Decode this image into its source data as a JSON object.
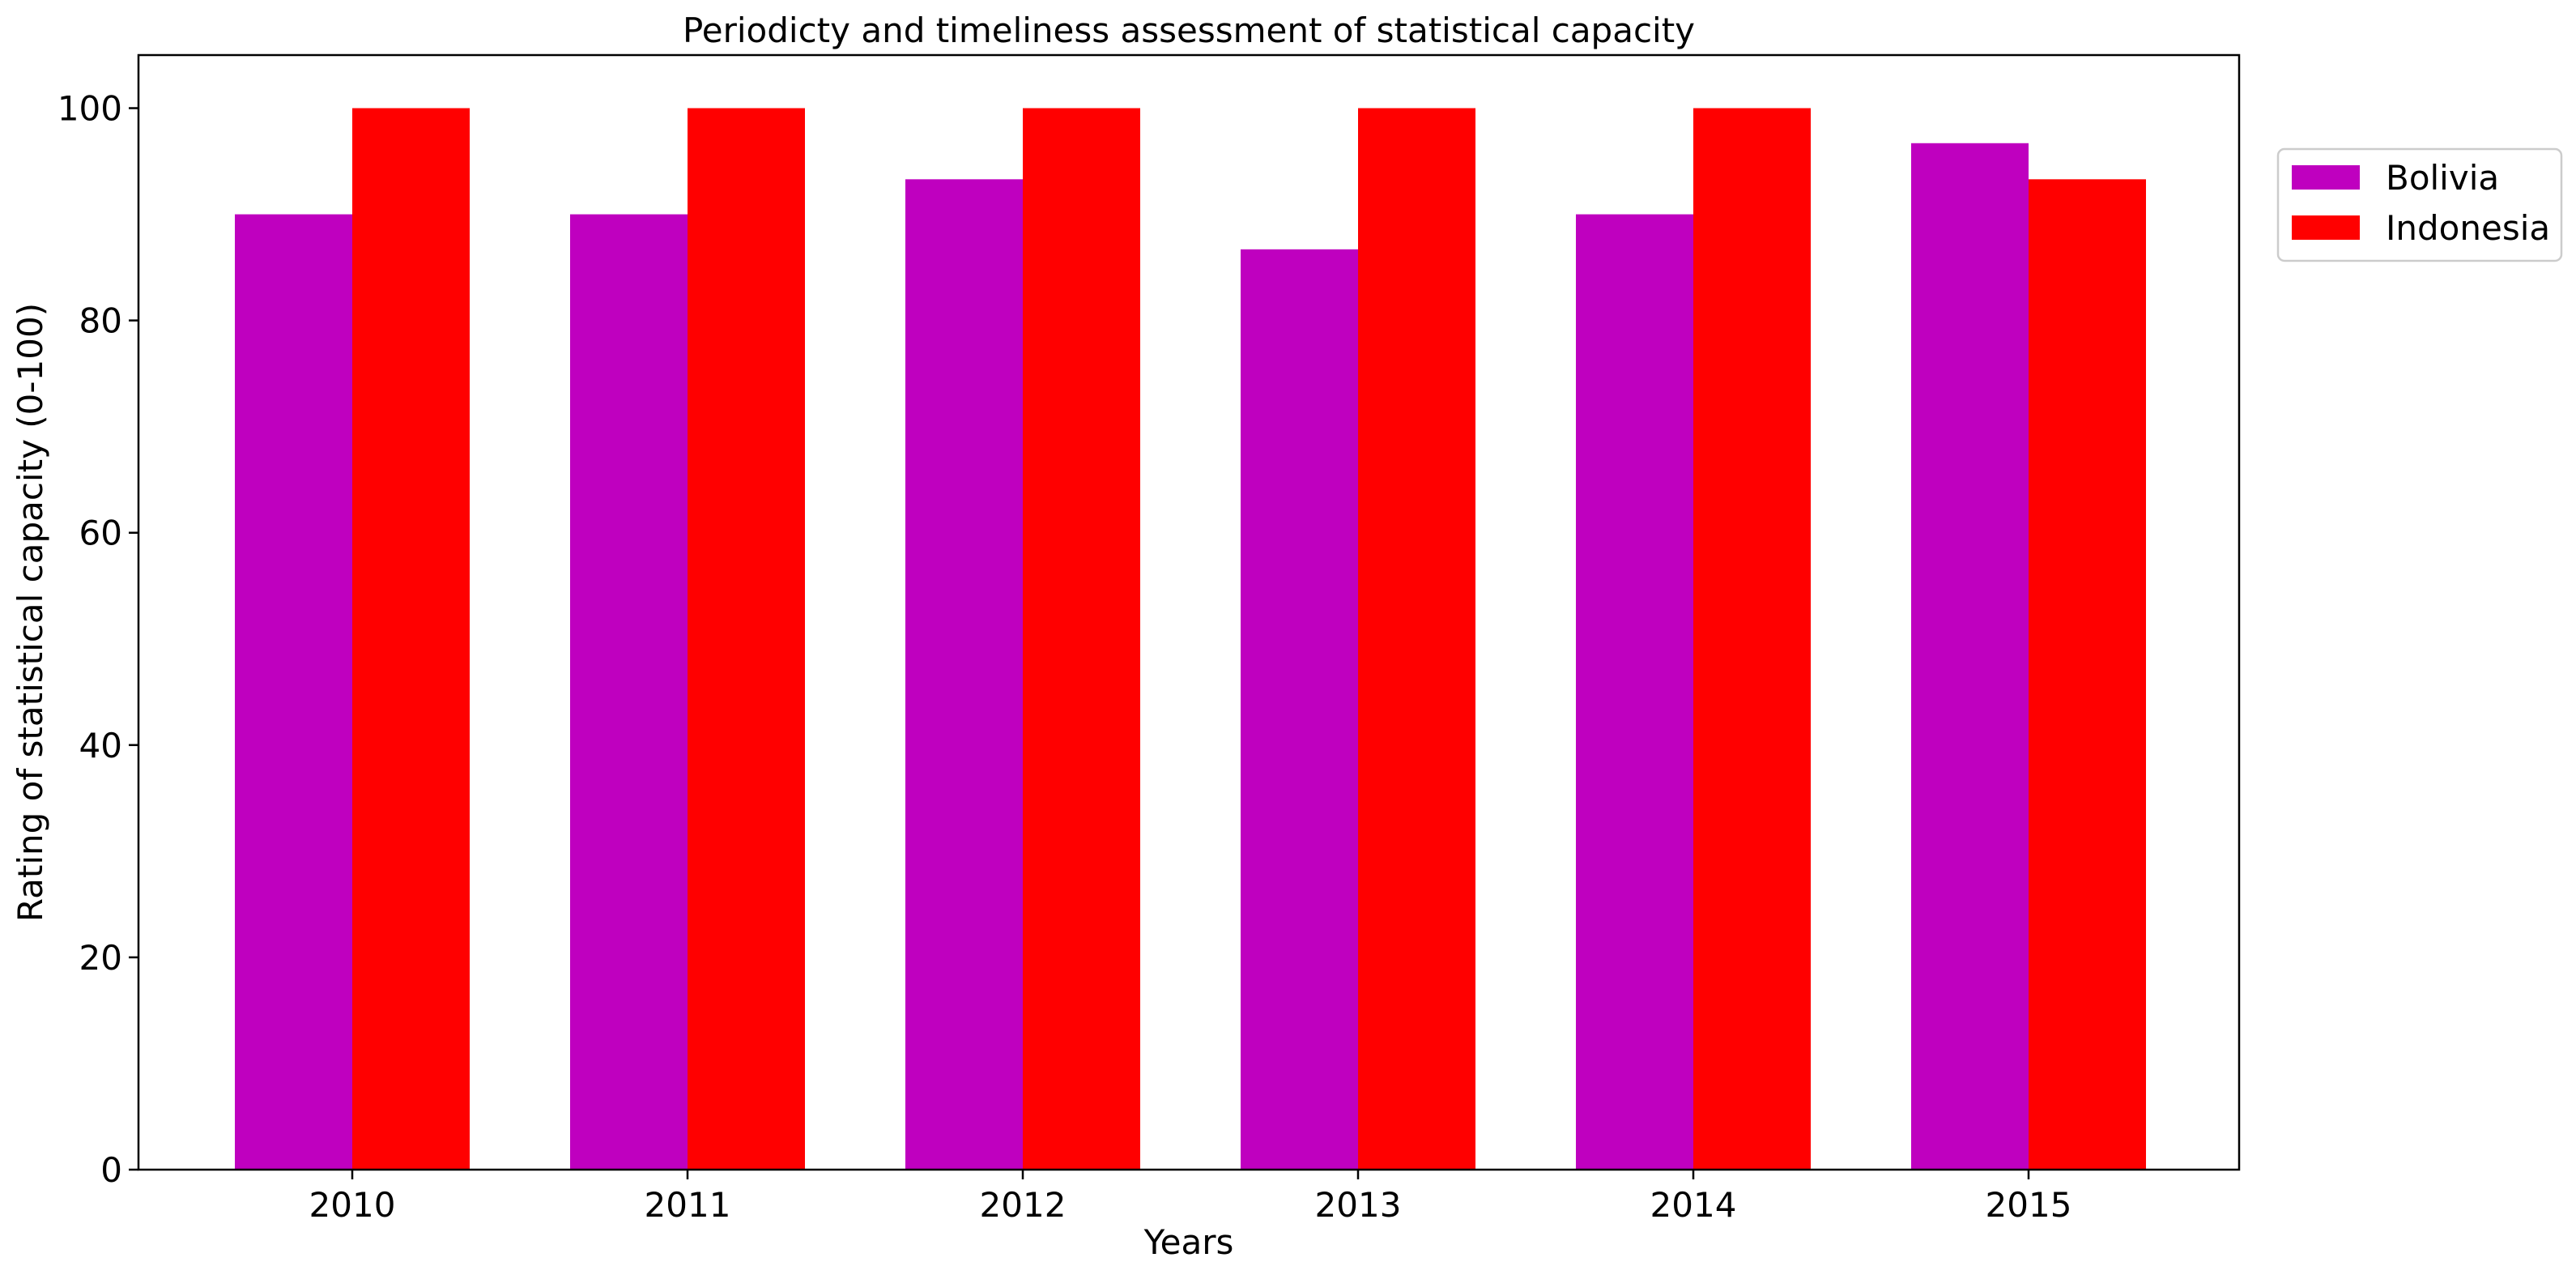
{
  "chart_data": {
    "type": "bar",
    "title": "Periodicty and timeliness assessment of statistical capacity",
    "xlabel": "Years",
    "ylabel": "Rating of statistical capacity (0-100)",
    "categories": [
      "2010",
      "2011",
      "2012",
      "2013",
      "2014",
      "2015"
    ],
    "series": [
      {
        "name": "Bolivia",
        "color": "#bf00bf",
        "values": [
          90,
          90,
          93.3,
          86.7,
          90,
          96.7
        ]
      },
      {
        "name": "Indonesia",
        "color": "#ff0000",
        "values": [
          100,
          100,
          100,
          100,
          100,
          93.3
        ]
      }
    ],
    "ylim": [
      0,
      105
    ],
    "yticks": [
      0,
      20,
      40,
      60,
      80,
      100
    ],
    "grid": false,
    "legend": "upper right, outside plot"
  }
}
